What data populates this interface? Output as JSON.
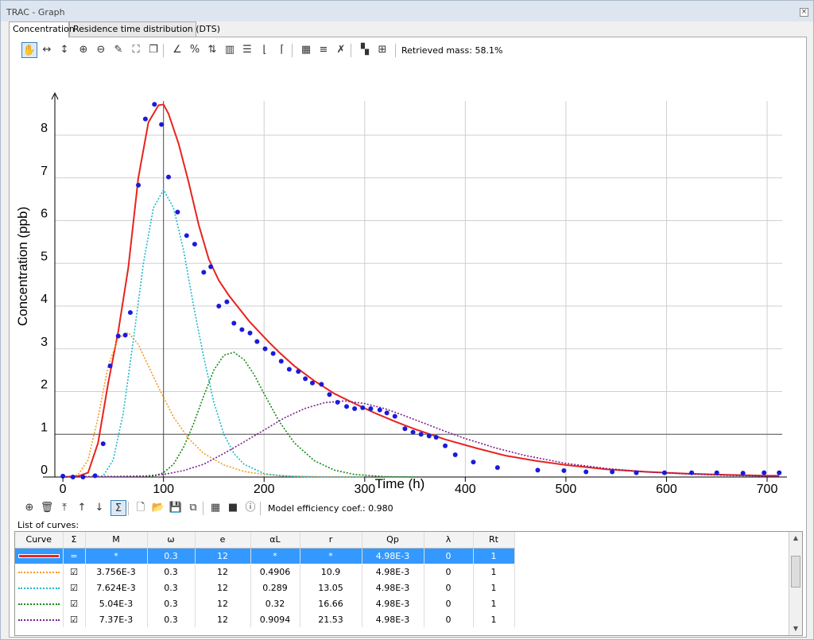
{
  "window": {
    "title": "TRAC - Graph",
    "close_glyph": "×"
  },
  "tabs": [
    {
      "label": "Concentration"
    },
    {
      "label": "Residence time distribution (DTS)"
    }
  ],
  "toolbar1": {
    "icons": [
      "pan-icon",
      "zoom-h-icon",
      "zoom-v-icon",
      "zoom-in-icon",
      "zoom-out-icon",
      "eraser-icon",
      "fit-icon",
      "copy-icon",
      "axes-icon",
      "percent-icon",
      "autoscale-icon",
      "bars-icon",
      "gridlines-icon",
      "x-axis-icon",
      "y-axis-icon",
      "legend-table-icon",
      "series-icon",
      "clear-series-icon",
      "grid-cells-icon",
      "center-icon"
    ],
    "glyphs": [
      "✋",
      "↔",
      "↕",
      "⊕",
      "⊖",
      "✎",
      "⛶",
      "❐",
      "∠",
      "%",
      "⇅",
      "▥",
      "☰",
      "⌊",
      "⌈",
      "▦",
      "≡",
      "✗",
      "▚",
      "⊞"
    ],
    "retrieved_mass": "Retrieved mass: 58.1%"
  },
  "toolbar2": {
    "icons": [
      "add-curve-icon",
      "delete-curve-icon",
      "move-top-icon",
      "move-up-icon",
      "move-down-icon",
      "sum-icon",
      "new-file-icon",
      "open-folder-icon",
      "save-icon",
      "save-all-icon",
      "table-icon",
      "color-map-icon",
      "info-icon"
    ],
    "glyphs": [
      "⊕",
      "🗑",
      "⤒",
      "↑",
      "↓",
      "Σ",
      "🗋",
      "📂",
      "💾",
      "⧉",
      "▦",
      "■",
      "ⓘ"
    ],
    "efficiency": "Model efficiency coef.: 0.980"
  },
  "list_label": "List of curves:",
  "table": {
    "headers": [
      "Curve",
      "Σ",
      "M",
      "ω",
      "e",
      "αL",
      "r",
      "Qp",
      "λ",
      "Rt"
    ],
    "rows": [
      {
        "color": "#e8231d",
        "style": "solid",
        "sigma": "=",
        "M": "*",
        "w": "0.3",
        "e": "12",
        "aL": "*",
        "r": "*",
        "Qp": "4.98E-3",
        "l": "0",
        "Rt": "1",
        "selected": true
      },
      {
        "color": "#f59a1e",
        "style": "dotted",
        "sigma": "☑",
        "M": "3.756E-3",
        "w": "0.3",
        "e": "12",
        "aL": "0.4906",
        "r": "10.9",
        "Qp": "4.98E-3",
        "l": "0",
        "Rt": "1",
        "selected": false
      },
      {
        "color": "#1ab8cc",
        "style": "dotted",
        "sigma": "☑",
        "M": "7.624E-3",
        "w": "0.3",
        "e": "12",
        "aL": "0.289",
        "r": "13.05",
        "Qp": "4.98E-3",
        "l": "0",
        "Rt": "1",
        "selected": false
      },
      {
        "color": "#138a13",
        "style": "dotted",
        "sigma": "☑",
        "M": "5.04E-3",
        "w": "0.3",
        "e": "12",
        "aL": "0.32",
        "r": "16.66",
        "Qp": "4.98E-3",
        "l": "0",
        "Rt": "1",
        "selected": false
      },
      {
        "color": "#7a1e8e",
        "style": "dotted",
        "sigma": "☑",
        "M": "7.37E-3",
        "w": "0.3",
        "e": "12",
        "aL": "0.9094",
        "r": "21.53",
        "Qp": "4.98E-3",
        "l": "0",
        "Rt": "1",
        "selected": false
      }
    ]
  },
  "chart_data": {
    "type": "line",
    "xlabel": "Time (h)",
    "ylabel": "Concentration (ppb)",
    "xlim": [
      -8,
      715
    ],
    "ylim": [
      0,
      8.8
    ],
    "xticks": [
      "0",
      "100",
      "200",
      "300",
      "400",
      "500",
      "600",
      "700"
    ],
    "xtick_values": [
      0,
      100,
      200,
      300,
      400,
      500,
      600,
      700
    ],
    "yticks": [
      "0",
      "1",
      "2",
      "3",
      "4",
      "5",
      "6",
      "7",
      "8"
    ],
    "ytick_values": [
      0,
      1,
      2,
      3,
      4,
      5,
      6,
      7,
      8
    ],
    "grid": true,
    "cursor_x": 100,
    "cursor_y": 1,
    "observed": {
      "name": "",
      "color": "#1a1adc",
      "x": [
        0,
        10,
        20,
        32,
        40,
        47,
        55,
        62,
        67,
        75,
        82,
        91,
        98,
        105,
        114,
        123,
        131,
        140,
        147,
        155,
        163,
        170,
        178,
        186,
        193,
        201,
        209,
        217,
        225,
        234,
        241,
        248,
        257,
        265,
        273,
        282,
        290,
        298,
        306,
        315,
        322,
        330,
        340,
        348,
        356,
        364,
        371,
        380,
        390,
        408,
        432,
        472,
        498,
        520,
        546,
        570,
        598,
        625,
        650,
        676,
        697,
        712
      ],
      "y": [
        0.02,
        0.0,
        0.0,
        0.03,
        0.78,
        2.6,
        3.3,
        3.32,
        3.85,
        6.83,
        8.38,
        8.72,
        8.25,
        7.02,
        6.2,
        5.65,
        5.45,
        4.79,
        4.92,
        4.0,
        4.1,
        3.6,
        3.45,
        3.37,
        3.17,
        3.0,
        2.89,
        2.71,
        2.52,
        2.47,
        2.3,
        2.2,
        2.17,
        1.93,
        1.75,
        1.65,
        1.6,
        1.62,
        1.6,
        1.57,
        1.5,
        1.42,
        1.13,
        1.05,
        1.0,
        0.96,
        0.93,
        0.73,
        0.52,
        0.35,
        0.22,
        0.16,
        0.15,
        0.12,
        0.12,
        0.1,
        0.1,
        0.1,
        0.1,
        0.09,
        0.1,
        0.1
      ]
    },
    "series": [
      {
        "name": "",
        "color": "#e8231d",
        "style": "solid",
        "x": [
          0,
          15,
          25,
          35,
          45,
          55,
          65,
          75,
          85,
          95,
          100,
          105,
          115,
          125,
          135,
          145,
          155,
          165,
          175,
          185,
          195,
          205,
          215,
          230,
          250,
          270,
          290,
          310,
          330,
          350,
          380,
          410,
          440,
          470,
          500,
          540,
          580,
          620,
          660,
          700,
          712
        ],
        "y": [
          0,
          0.02,
          0.1,
          0.8,
          2.2,
          3.4,
          4.9,
          7.0,
          8.3,
          8.7,
          8.72,
          8.5,
          7.8,
          6.9,
          5.9,
          5.1,
          4.6,
          4.25,
          3.95,
          3.65,
          3.4,
          3.15,
          2.92,
          2.6,
          2.25,
          1.95,
          1.72,
          1.5,
          1.3,
          1.12,
          0.88,
          0.68,
          0.5,
          0.38,
          0.28,
          0.18,
          0.12,
          0.08,
          0.05,
          0.03,
          0.03
        ]
      },
      {
        "name": "",
        "color": "#f59a1e",
        "style": "dotted",
        "x": [
          0,
          15,
          25,
          35,
          45,
          55,
          65,
          75,
          85,
          95,
          110,
          125,
          140,
          160,
          180,
          200,
          230,
          260,
          300
        ],
        "y": [
          0,
          0.05,
          0.4,
          1.4,
          2.6,
          3.25,
          3.38,
          3.1,
          2.6,
          2.1,
          1.4,
          0.9,
          0.55,
          0.28,
          0.13,
          0.06,
          0.02,
          0.005,
          0
        ]
      },
      {
        "name": "",
        "color": "#1ab8cc",
        "style": "dotted",
        "x": [
          0,
          40,
          50,
          60,
          70,
          80,
          90,
          100,
          110,
          120,
          130,
          140,
          150,
          160,
          170,
          180,
          200,
          220,
          250,
          300
        ],
        "y": [
          0,
          0.02,
          0.4,
          1.5,
          3.2,
          5.0,
          6.3,
          6.72,
          6.3,
          5.3,
          4.0,
          2.8,
          1.75,
          1.0,
          0.55,
          0.3,
          0.08,
          0.02,
          0,
          0
        ]
      },
      {
        "name": "",
        "color": "#138a13",
        "style": "dotted",
        "x": [
          0,
          90,
          100,
          110,
          120,
          130,
          140,
          150,
          160,
          170,
          180,
          190,
          200,
          215,
          230,
          250,
          270,
          290,
          320,
          350
        ],
        "y": [
          0,
          0.02,
          0.1,
          0.3,
          0.7,
          1.25,
          1.9,
          2.5,
          2.85,
          2.92,
          2.75,
          2.4,
          1.95,
          1.3,
          0.8,
          0.38,
          0.16,
          0.06,
          0.01,
          0
        ]
      },
      {
        "name": "",
        "color": "#7a1e8e",
        "style": "dotted",
        "x": [
          0,
          80,
          100,
          120,
          140,
          160,
          180,
          200,
          220,
          240,
          260,
          280,
          300,
          320,
          340,
          360,
          380,
          400,
          430,
          460,
          500,
          540,
          580,
          620,
          660,
          700,
          712
        ],
        "y": [
          0,
          0.02,
          0.06,
          0.15,
          0.3,
          0.55,
          0.82,
          1.1,
          1.38,
          1.6,
          1.74,
          1.78,
          1.72,
          1.6,
          1.43,
          1.25,
          1.07,
          0.9,
          0.68,
          0.5,
          0.32,
          0.2,
          0.12,
          0.07,
          0.04,
          0.02,
          0.02
        ]
      }
    ]
  }
}
